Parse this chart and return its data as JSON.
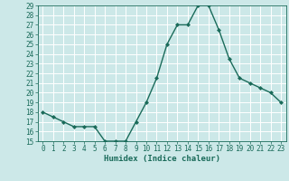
{
  "x": [
    0,
    1,
    2,
    3,
    4,
    5,
    6,
    7,
    8,
    9,
    10,
    11,
    12,
    13,
    14,
    15,
    16,
    17,
    18,
    19,
    20,
    21,
    22,
    23
  ],
  "y": [
    18.0,
    17.5,
    17.0,
    16.5,
    16.5,
    16.5,
    15.0,
    15.0,
    15.0,
    17.0,
    19.0,
    21.5,
    25.0,
    27.0,
    27.0,
    29.0,
    29.0,
    26.5,
    23.5,
    21.5,
    21.0,
    20.5,
    20.0,
    19.0
  ],
  "line_color": "#1a6b5a",
  "marker": "D",
  "marker_size": 2,
  "bg_color": "#cce8e8",
  "grid_color": "#ffffff",
  "xlabel": "Humidex (Indice chaleur)",
  "ylim": [
    15,
    29
  ],
  "xlim_min": -0.5,
  "xlim_max": 23.5,
  "yticks": [
    15,
    16,
    17,
    18,
    19,
    20,
    21,
    22,
    23,
    24,
    25,
    26,
    27,
    28,
    29
  ],
  "xticks": [
    0,
    1,
    2,
    3,
    4,
    5,
    6,
    7,
    8,
    9,
    10,
    11,
    12,
    13,
    14,
    15,
    16,
    17,
    18,
    19,
    20,
    21,
    22,
    23
  ],
  "tick_fontsize": 5.5,
  "label_fontsize": 6.5
}
